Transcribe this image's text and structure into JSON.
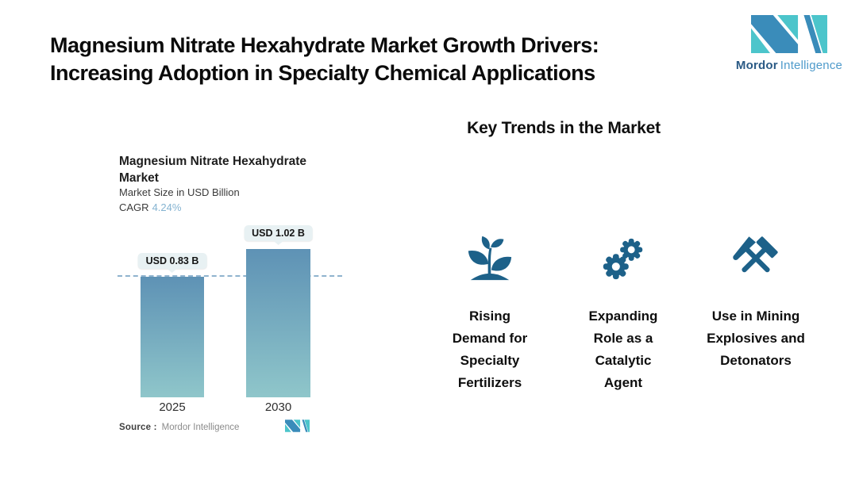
{
  "header": {
    "title_line1": "Magnesium Nitrate Hexahydrate Market Growth Drivers:",
    "title_line2": "Increasing Adoption in Specialty Chemical Applications",
    "logo": {
      "brand_bold": "Mordor",
      "brand_light": "Intelligence"
    }
  },
  "chart": {
    "title_line1": "Magnesium Nitrate Hexahydrate",
    "title_line2": "Market",
    "subtitle": "Market Size in USD Billion",
    "cagr_label": "CAGR",
    "cagr_value": "4.24%",
    "source_label": "Source :",
    "source_value": "Mordor Intelligence"
  },
  "chart_data": {
    "type": "bar",
    "title": "Magnesium Nitrate Hexahydrate Market",
    "subtitle": "Market Size in USD Billion",
    "unit": "USD Billion",
    "cagr": "4.24%",
    "categories": [
      "2025",
      "2030"
    ],
    "values": [
      0.83,
      1.02
    ],
    "value_labels": [
      "USD 0.83 B",
      "USD 1.02 B"
    ],
    "reference_line_value": 0.83,
    "ylim": [
      0,
      1.2
    ],
    "grid": "off",
    "legend": "none",
    "bar_gradient_top": "#5e92b5",
    "bar_gradient_bottom": "#8fc6ca"
  },
  "trends": {
    "heading": "Key Trends in the Market",
    "items": [
      {
        "icon": "plant-sprout-icon",
        "label": "Rising Demand for Specialty Fertilizers"
      },
      {
        "icon": "gears-icon",
        "label": "Expanding Role as a Catalytic Agent"
      },
      {
        "icon": "crossed-hammers-icon",
        "label": "Use in Mining Explosives and Detonators"
      }
    ]
  },
  "colors": {
    "icon_blue": "#1d6189",
    "logo_teal": "#4cc5cb",
    "logo_blue": "#3a8cba",
    "dashed_line": "#8fb3ce",
    "badge_bg": "#e8f1f3",
    "cagr_blue": "#84b3d1"
  }
}
